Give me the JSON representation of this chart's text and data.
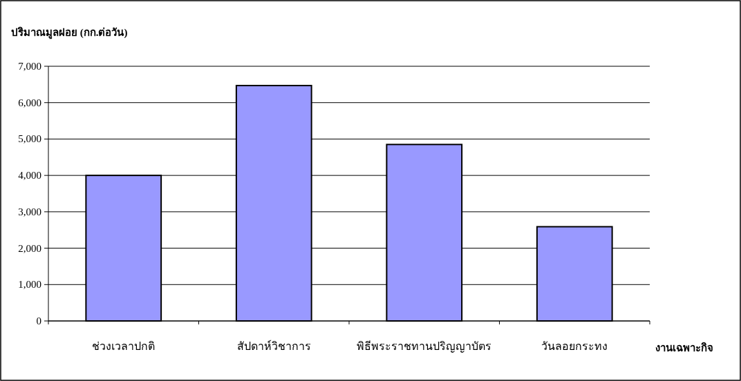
{
  "chart_data": {
    "type": "bar",
    "ylabel": "ปริมาณมูลฝอย (กก.ต่อวัน)",
    "xlabel": "งานเฉพาะกิจ",
    "categories": [
      "ช่วงเวลาปกติ",
      "สัปดาห์วิชาการ",
      "พิธีพระราชทานปริญญาบัตร",
      "วันลอยกระทง"
    ],
    "values": [
      4000,
      6470,
      4850,
      2590
    ],
    "color": "#9999ff",
    "ylim": [
      0,
      7000
    ],
    "yticks": [
      {
        "value": 0,
        "label": "0"
      },
      {
        "value": 1000,
        "label": "1,000"
      },
      {
        "value": 2000,
        "label": "2,000"
      },
      {
        "value": 3000,
        "label": "3,000"
      },
      {
        "value": 4000,
        "label": "4,000"
      },
      {
        "value": 5000,
        "label": "5,000"
      },
      {
        "value": 6000,
        "label": "6,000"
      },
      {
        "value": 7000,
        "label": "7,000"
      }
    ],
    "grid": "y"
  }
}
